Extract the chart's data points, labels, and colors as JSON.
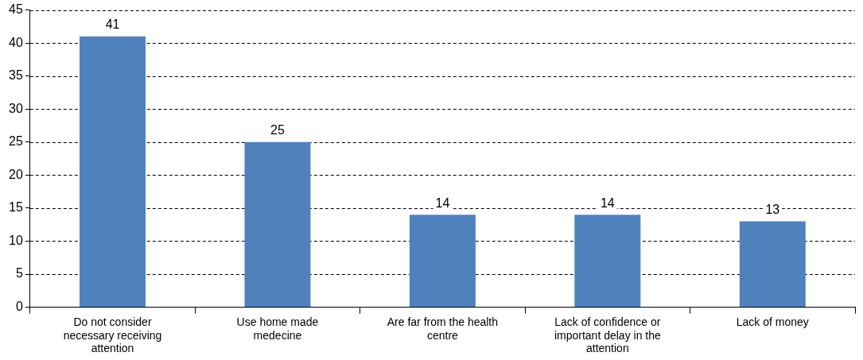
{
  "chart_data": {
    "type": "bar",
    "categories": [
      "Do not consider necessary receiving attention",
      "Use home made medecine",
      "Are far from the health centre",
      "Lack of confidence or important delay in the attention",
      "Lack of money"
    ],
    "values": [
      41,
      25,
      14,
      14,
      13
    ],
    "color": "#4f81bd",
    "ylim": [
      0,
      45
    ],
    "yticks": [
      0,
      5,
      10,
      15,
      20,
      25,
      30,
      35,
      40,
      45
    ],
    "grid": "y",
    "legend": false,
    "data_labels": true
  }
}
